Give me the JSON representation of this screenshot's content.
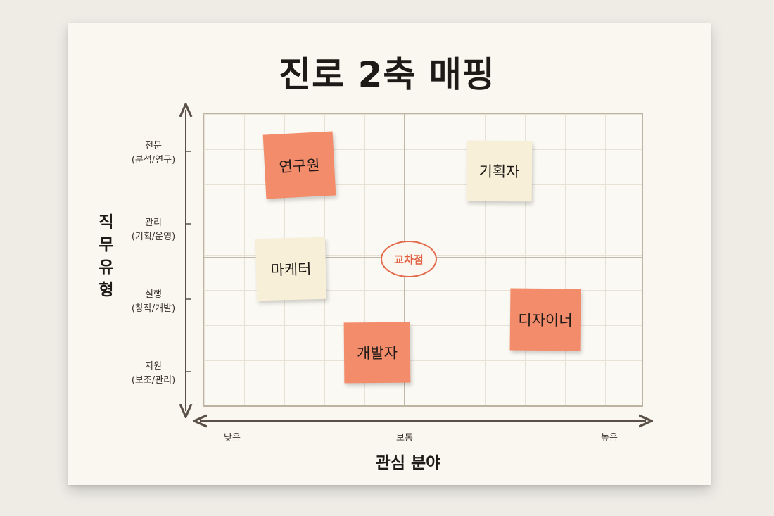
{
  "title": "진로 2축 매핑",
  "y_axis": {
    "title": "직무 유형",
    "levels": [
      {
        "name": "전문",
        "sub": "(분석/연구)"
      },
      {
        "name": "관리",
        "sub": "(기획/운영)"
      },
      {
        "name": "실행",
        "sub": "(창작/개발)"
      },
      {
        "name": "지원",
        "sub": "(보조/관리)"
      }
    ]
  },
  "x_axis": {
    "title": "관심 분야",
    "levels": [
      "낮음",
      "보통",
      "높음"
    ]
  },
  "center_label": "교차점",
  "notes": [
    {
      "label": "연구원",
      "color": "orange"
    },
    {
      "label": "기획자",
      "color": "cream"
    },
    {
      "label": "마케터",
      "color": "cream"
    },
    {
      "label": "디자이너",
      "color": "orange"
    },
    {
      "label": "개발자",
      "color": "orange"
    }
  ],
  "colors": {
    "orange_note": "#f28c6b",
    "cream_note": "#f8efd8",
    "accent": "#e36a4a",
    "axis": "#5b5048"
  }
}
